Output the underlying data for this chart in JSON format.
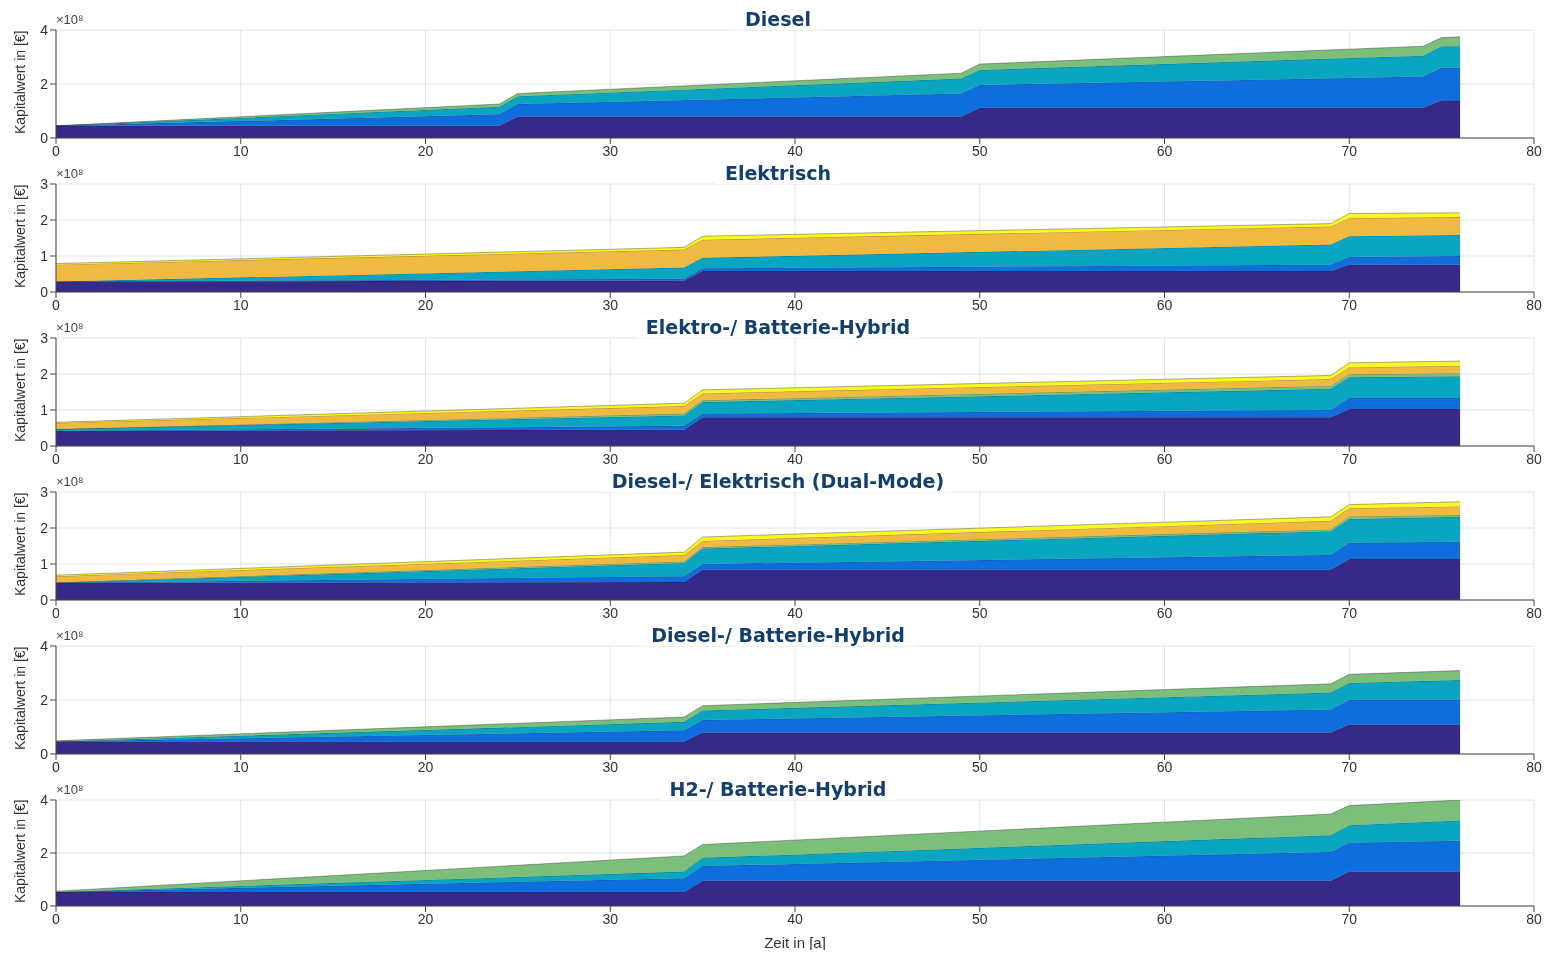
{
  "chart_data": [
    {
      "type": "area",
      "stacked": true,
      "title": "Diesel",
      "ylabel": "Kapitalwert in [€]",
      "annotations": [
        "×10⁸"
      ],
      "grid": true,
      "xlim": [
        0,
        80
      ],
      "xticks": [
        0,
        10,
        20,
        30,
        40,
        50,
        60,
        70,
        80
      ],
      "ylim": [
        0,
        4
      ],
      "yticks": [
        0,
        2,
        4
      ],
      "x": [
        0,
        24,
        25,
        49,
        50,
        74,
        75,
        76
      ],
      "series": [
        {
          "color": "#352a87",
          "values": [
            0.45,
            0.45,
            0.8,
            0.8,
            1.12,
            1.12,
            1.4,
            1.4
          ]
        },
        {
          "color": "#0f6ede",
          "values": [
            0,
            0.43,
            0.46,
            0.85,
            0.84,
            1.16,
            1.2,
            1.2
          ]
        },
        {
          "color": "#0aa5c0",
          "values": [
            0,
            0.28,
            0.29,
            0.55,
            0.56,
            0.77,
            0.8,
            0.8
          ]
        },
        {
          "color": "#7cbf7b",
          "values": [
            0,
            0.1,
            0.1,
            0.2,
            0.22,
            0.35,
            0.32,
            0.35
          ]
        }
      ]
    },
    {
      "type": "area",
      "stacked": true,
      "title": "Elektrisch",
      "ylabel": "Kapitalwert in [€]",
      "annotations": [
        "×10⁸"
      ],
      "grid": true,
      "xlim": [
        0,
        80
      ],
      "xticks": [
        0,
        10,
        20,
        30,
        40,
        50,
        60,
        70,
        80
      ],
      "ylim": [
        0,
        3
      ],
      "yticks": [
        0,
        1,
        2,
        3
      ],
      "x": [
        0,
        34,
        35,
        69,
        70,
        76
      ],
      "series": [
        {
          "color": "#352a87",
          "values": [
            0.29,
            0.32,
            0.58,
            0.58,
            0.76,
            0.76
          ]
        },
        {
          "color": "#0f6ede",
          "values": [
            0,
            0.05,
            0.08,
            0.18,
            0.21,
            0.24
          ]
        },
        {
          "color": "#0aa5c0",
          "values": [
            0,
            0.31,
            0.29,
            0.56,
            0.58,
            0.58
          ]
        },
        {
          "color": "#f0b942",
          "values": [
            0.47,
            0.5,
            0.5,
            0.5,
            0.5,
            0.5
          ]
        },
        {
          "color": "#f9f628",
          "values": [
            0.03,
            0.06,
            0.1,
            0.08,
            0.13,
            0.12
          ]
        }
      ]
    },
    {
      "type": "area",
      "stacked": true,
      "title": "Elektro-/ Batterie-Hybrid",
      "ylabel": "Kapitalwert in [€]",
      "annotations": [
        "×10⁸"
      ],
      "grid": true,
      "xlim": [
        0,
        80
      ],
      "xticks": [
        0,
        10,
        20,
        30,
        40,
        50,
        60,
        70,
        80
      ],
      "ylim": [
        0,
        3
      ],
      "yticks": [
        0,
        1,
        2,
        3
      ],
      "x": [
        0,
        34,
        35,
        69,
        70,
        76
      ],
      "series": [
        {
          "color": "#352a87",
          "values": [
            0.42,
            0.45,
            0.8,
            0.8,
            1.03,
            1.03
          ]
        },
        {
          "color": "#0f6ede",
          "values": [
            0,
            0.11,
            0.1,
            0.2,
            0.3,
            0.3
          ]
        },
        {
          "color": "#0aa5c0",
          "values": [
            0.05,
            0.29,
            0.32,
            0.59,
            0.58,
            0.61
          ]
        },
        {
          "color": "#7cbf7b",
          "values": [
            0,
            0.05,
            0.05,
            0.08,
            0.08,
            0.08
          ]
        },
        {
          "color": "#f0b942",
          "values": [
            0.17,
            0.21,
            0.19,
            0.19,
            0.19,
            0.21
          ]
        },
        {
          "color": "#f9f628",
          "values": [
            0.02,
            0.08,
            0.1,
            0.1,
            0.13,
            0.13
          ]
        }
      ]
    },
    {
      "type": "area",
      "stacked": true,
      "title": "Diesel-/ Elektrisch (Dual-Mode)",
      "ylabel": "Kapitalwert in [€]",
      "annotations": [
        "×10⁸"
      ],
      "grid": true,
      "xlim": [
        0,
        80
      ],
      "xticks": [
        0,
        10,
        20,
        30,
        40,
        50,
        60,
        70,
        80
      ],
      "ylim": [
        0,
        3
      ],
      "yticks": [
        0,
        1,
        2,
        3
      ],
      "x": [
        0,
        34,
        35,
        69,
        70,
        76
      ],
      "series": [
        {
          "color": "#352a87",
          "values": [
            0.48,
            0.5,
            0.85,
            0.85,
            1.14,
            1.14
          ]
        },
        {
          "color": "#0f6ede",
          "values": [
            0,
            0.16,
            0.15,
            0.4,
            0.45,
            0.48
          ]
        },
        {
          "color": "#0aa5c0",
          "values": [
            0,
            0.37,
            0.43,
            0.66,
            0.66,
            0.69
          ]
        },
        {
          "color": "#7cbf7b",
          "values": [
            0.01,
            0.04,
            0.04,
            0.05,
            0.07,
            0.05
          ]
        },
        {
          "color": "#f0b942",
          "values": [
            0.17,
            0.18,
            0.17,
            0.24,
            0.23,
            0.24
          ]
        },
        {
          "color": "#f9f628",
          "values": [
            0.03,
            0.08,
            0.11,
            0.11,
            0.1,
            0.13
          ]
        }
      ]
    },
    {
      "type": "area",
      "stacked": true,
      "title": "Diesel-/ Batterie-Hybrid",
      "ylabel": "Kapitalwert in [€]",
      "annotations": [
        "×10⁸"
      ],
      "grid": true,
      "xlim": [
        0,
        80
      ],
      "xticks": [
        0,
        10,
        20,
        30,
        40,
        50,
        60,
        70,
        80
      ],
      "ylim": [
        0,
        4
      ],
      "yticks": [
        0,
        2,
        4
      ],
      "x": [
        0,
        34,
        35,
        69,
        70,
        76
      ],
      "series": [
        {
          "color": "#352a87",
          "values": [
            0.46,
            0.46,
            0.8,
            0.8,
            1.09,
            1.09
          ]
        },
        {
          "color": "#0f6ede",
          "values": [
            0,
            0.42,
            0.46,
            0.85,
            0.91,
            0.91
          ]
        },
        {
          "color": "#0aa5c0",
          "values": [
            0,
            0.31,
            0.35,
            0.63,
            0.63,
            0.74
          ]
        },
        {
          "color": "#7cbf7b",
          "values": [
            0.03,
            0.18,
            0.18,
            0.32,
            0.32,
            0.35
          ]
        }
      ]
    },
    {
      "type": "area",
      "stacked": true,
      "title": "H2-/ Batterie-Hybrid",
      "ylabel": "Kapitalwert in [€]",
      "xlabel": "Zeit in [a]",
      "annotations": [
        "×10⁸"
      ],
      "grid": true,
      "xlim": [
        0,
        80
      ],
      "xticks": [
        0,
        10,
        20,
        30,
        40,
        50,
        60,
        70,
        80
      ],
      "ylim": [
        0,
        4
      ],
      "yticks": [
        0,
        2,
        4
      ],
      "x": [
        0,
        34,
        35,
        69,
        70,
        76
      ],
      "series": [
        {
          "color": "#352a87",
          "values": [
            0.53,
            0.53,
            0.95,
            0.95,
            1.3,
            1.3
          ]
        },
        {
          "color": "#0f6ede",
          "values": [
            0,
            0.52,
            0.56,
            1.09,
            1.09,
            1.16
          ]
        },
        {
          "color": "#0aa5c0",
          "values": [
            0,
            0.25,
            0.31,
            0.63,
            0.66,
            0.77
          ]
        },
        {
          "color": "#7cbf7b",
          "values": [
            0.03,
            0.59,
            0.5,
            0.8,
            0.74,
            0.77
          ]
        }
      ]
    }
  ]
}
